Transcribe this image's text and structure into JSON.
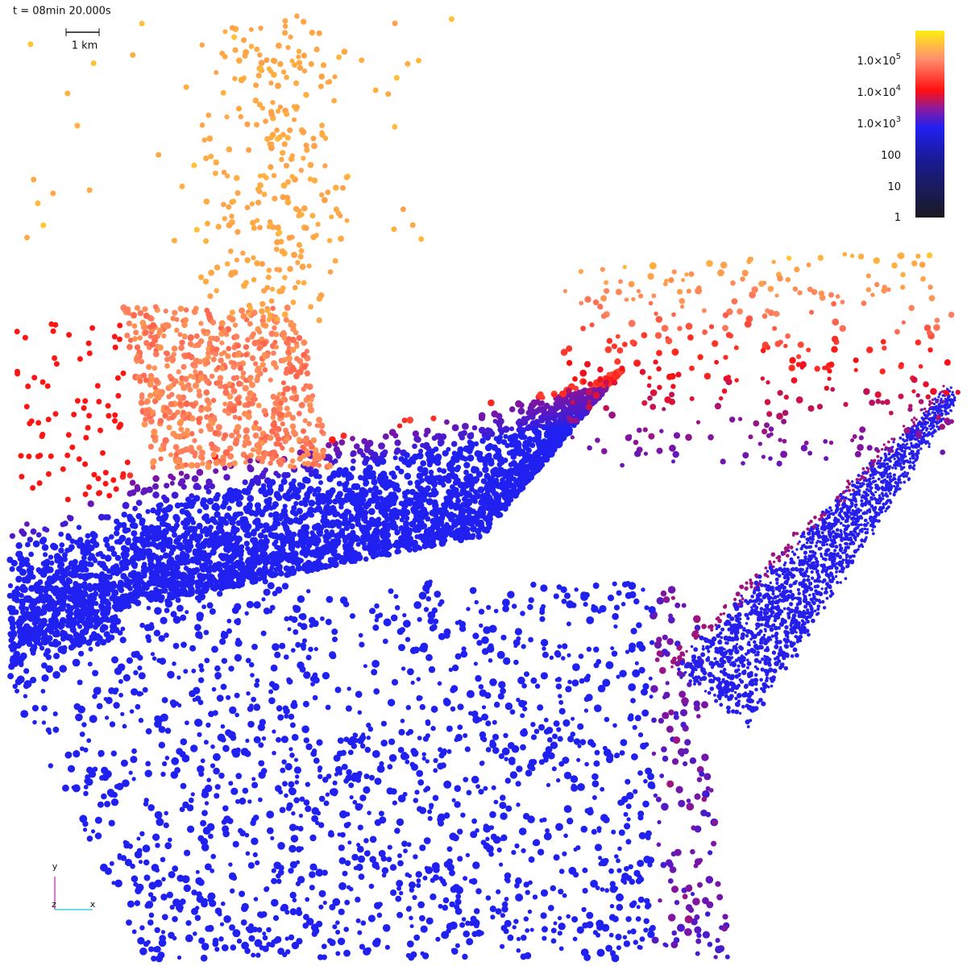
{
  "header": {
    "time": "t = 08min 20.000s",
    "scale_bar": "1 km"
  },
  "colorbar": {
    "labels": [
      {
        "base": "1.0×10",
        "exponent": "5"
      },
      {
        "base": "1.0×10",
        "exponent": "4"
      },
      {
        "base": "1.0×10",
        "exponent": "3"
      },
      {
        "base": "100"
      },
      {
        "base": "10"
      },
      {
        "base": "1"
      }
    ]
  },
  "axes_gizmo": {
    "y": "y",
    "z": "z",
    "x": "x"
  }
}
